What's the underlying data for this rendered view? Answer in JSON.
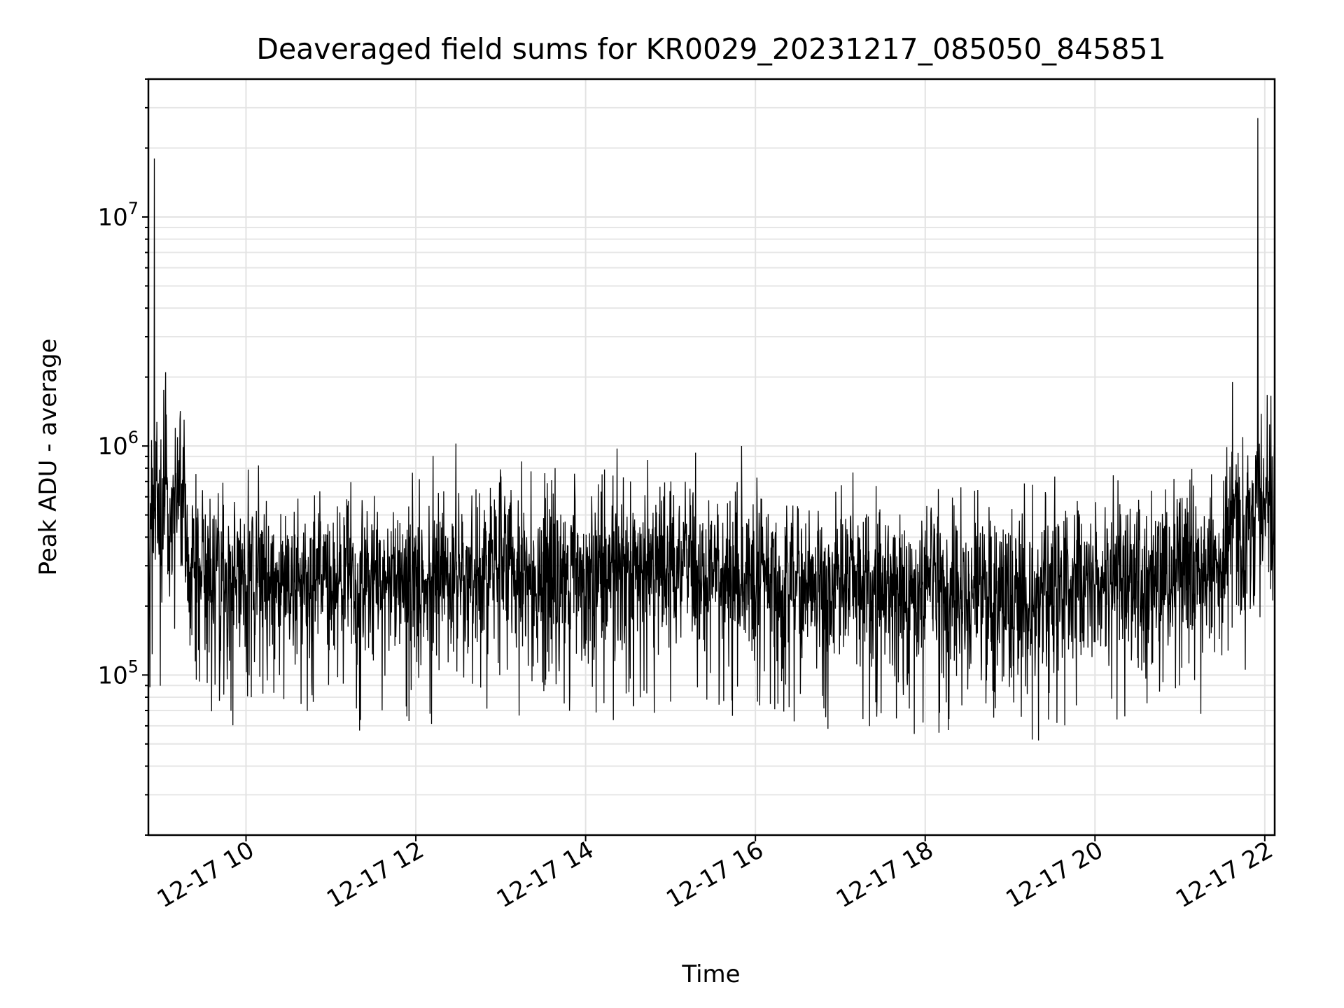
{
  "chart_data": {
    "type": "line",
    "title": "Deaveraged field sums for KR0029_20231217_085050_845851",
    "xlabel": "Time",
    "ylabel": "Peak ADU - average",
    "yscale": "log",
    "ylim": [
      20000,
      40000000
    ],
    "xlim": [
      "2023-12-17 08:51",
      "2023-12-17 22:07"
    ],
    "x_ticks": [
      "12-17 10",
      "12-17 12",
      "12-17 14",
      "12-17 16",
      "12-17 18",
      "12-17 20",
      "12-17 22"
    ],
    "y_ticks": [
      {
        "base": "10",
        "exp": "5"
      },
      {
        "base": "10",
        "exp": "6"
      },
      {
        "base": "10",
        "exp": "7"
      }
    ],
    "grid": "on (major and minor)",
    "legend": "none",
    "color": "#000000",
    "series": [
      {
        "x": [
          "08:51",
          "08:55",
          "09:00",
          "09:03",
          "09:06",
          "09:10",
          "09:15",
          "09:20",
          "09:30",
          "09:45",
          "10:00",
          "10:30",
          "11:00",
          "11:30",
          "12:00",
          "12:30",
          "13:00",
          "13:30",
          "14:00",
          "14:30",
          "15:00",
          "15:30",
          "16:00",
          "16:30",
          "17:00",
          "17:30",
          "18:00",
          "18:30",
          "19:00",
          "19:30",
          "20:00",
          "20:30",
          "21:00",
          "21:30",
          "21:37",
          "21:45",
          "21:55",
          "22:07"
        ],
        "y": [
          250000,
          18000000,
          350000,
          2100000,
          400000,
          1200000,
          600000,
          300000,
          260000,
          250000,
          270000,
          240000,
          260000,
          250000,
          270000,
          260000,
          280000,
          270000,
          290000,
          280000,
          300000,
          270000,
          280000,
          260000,
          250000,
          240000,
          230000,
          240000,
          220000,
          230000,
          260000,
          270000,
          280000,
          300000,
          1900000,
          350000,
          27000000,
          400000
        ]
      }
    ]
  }
}
